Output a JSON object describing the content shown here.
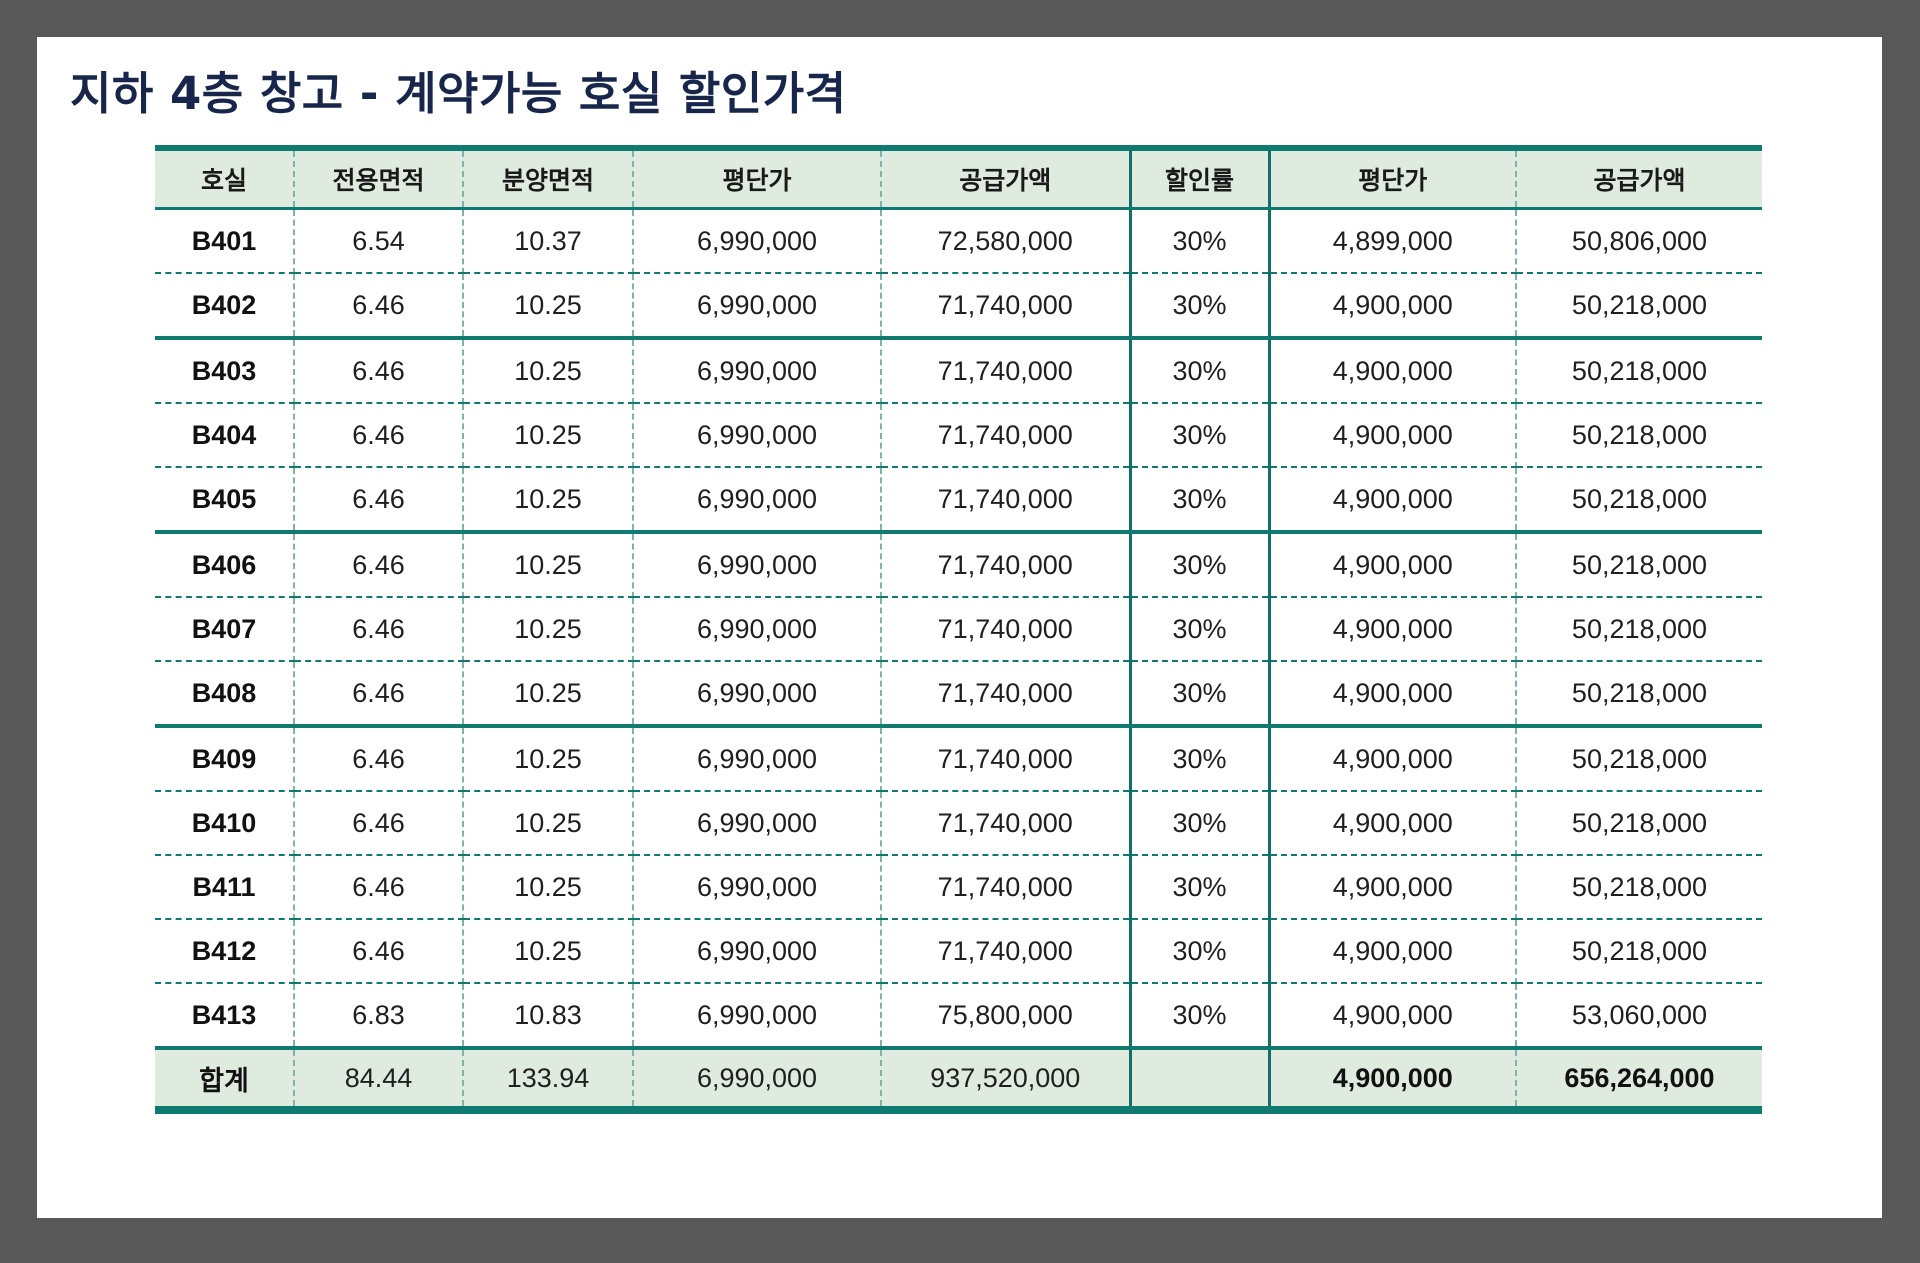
{
  "page": {
    "title": "지하 4층 창고 - 계약가능 호실 할인가격"
  },
  "colors": {
    "frame": "#595959",
    "title": "#17264a",
    "rule": "#0f7a70",
    "header_bg": "#dfebdf"
  },
  "table": {
    "headers": [
      "호실",
      "전용면적",
      "분양면적",
      "평단가",
      "공급가액",
      "할인률",
      "평단가",
      "공급가액"
    ],
    "rows": [
      [
        "B401",
        "6.54",
        "10.37",
        "6,990,000",
        "72,580,000",
        "30%",
        "4,899,000",
        "50,806,000"
      ],
      [
        "B402",
        "6.46",
        "10.25",
        "6,990,000",
        "71,740,000",
        "30%",
        "4,900,000",
        "50,218,000"
      ],
      [
        "B403",
        "6.46",
        "10.25",
        "6,990,000",
        "71,740,000",
        "30%",
        "4,900,000",
        "50,218,000"
      ],
      [
        "B404",
        "6.46",
        "10.25",
        "6,990,000",
        "71,740,000",
        "30%",
        "4,900,000",
        "50,218,000"
      ],
      [
        "B405",
        "6.46",
        "10.25",
        "6,990,000",
        "71,740,000",
        "30%",
        "4,900,000",
        "50,218,000"
      ],
      [
        "B406",
        "6.46",
        "10.25",
        "6,990,000",
        "71,740,000",
        "30%",
        "4,900,000",
        "50,218,000"
      ],
      [
        "B407",
        "6.46",
        "10.25",
        "6,990,000",
        "71,740,000",
        "30%",
        "4,900,000",
        "50,218,000"
      ],
      [
        "B408",
        "6.46",
        "10.25",
        "6,990,000",
        "71,740,000",
        "30%",
        "4,900,000",
        "50,218,000"
      ],
      [
        "B409",
        "6.46",
        "10.25",
        "6,990,000",
        "71,740,000",
        "30%",
        "4,900,000",
        "50,218,000"
      ],
      [
        "B410",
        "6.46",
        "10.25",
        "6,990,000",
        "71,740,000",
        "30%",
        "4,900,000",
        "50,218,000"
      ],
      [
        "B411",
        "6.46",
        "10.25",
        "6,990,000",
        "71,740,000",
        "30%",
        "4,900,000",
        "50,218,000"
      ],
      [
        "B412",
        "6.46",
        "10.25",
        "6,990,000",
        "71,740,000",
        "30%",
        "4,900,000",
        "50,218,000"
      ],
      [
        "B413",
        "6.83",
        "10.83",
        "6,990,000",
        "75,800,000",
        "30%",
        "4,900,000",
        "53,060,000"
      ]
    ],
    "total": [
      "합계",
      "84.44",
      "133.94",
      "6,990,000",
      "937,520,000",
      "",
      "4,900,000",
      "656,264,000"
    ]
  }
}
